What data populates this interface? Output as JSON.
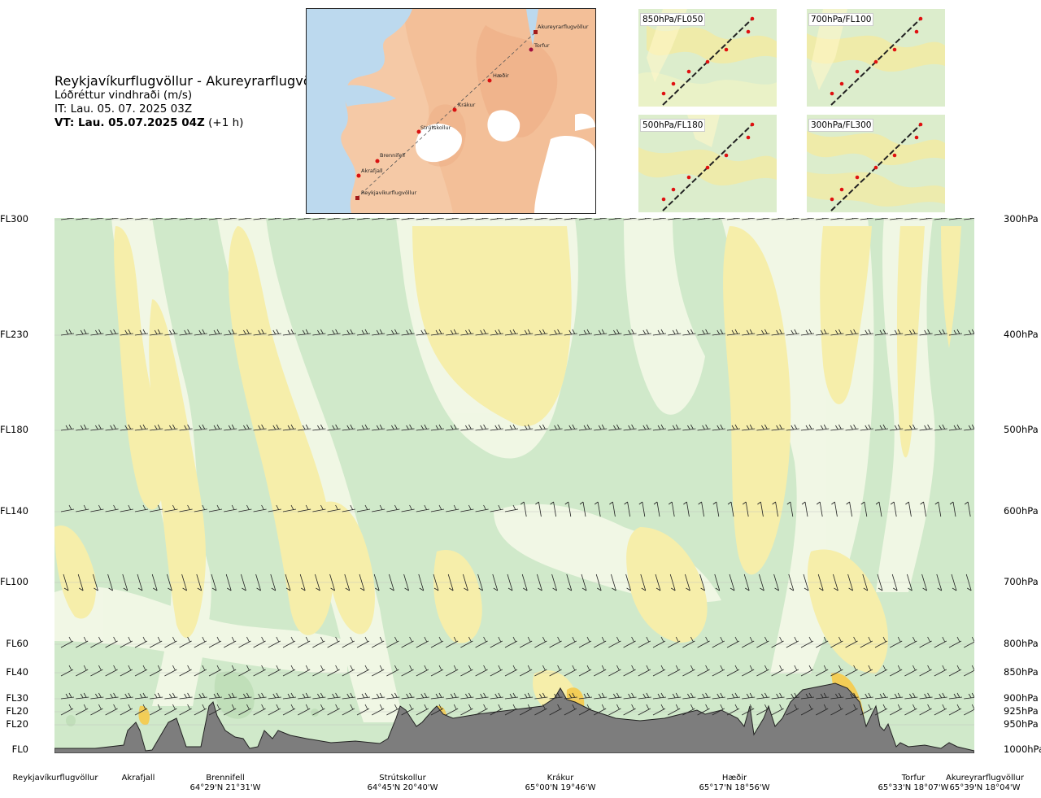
{
  "title": {
    "route": "Reykjavíkurflugvöllur - Akureyrarflugvöllur",
    "subtitle": "Lóðréttur vindhraði (m/s)",
    "it": "IT: Lau. 05. 07. 2025 03Z",
    "vt_bold": "VT: Lau. 05.07.2025 04Z",
    "vt_rest": " (+1 h)"
  },
  "map": {
    "points": [
      "Akureyrarflugvöllur",
      "Torfur",
      "Hæðir",
      "Krákur",
      "Strútskollur",
      "Brennifell",
      "Akrafjall",
      "Reykjavíkurflugvöllur"
    ]
  },
  "mini_maps": [
    {
      "label": "850hPa/FL050"
    },
    {
      "label": "700hPa/FL100"
    },
    {
      "label": "500hPa/FL180"
    },
    {
      "label": "300hPa/FL300"
    }
  ],
  "levels": [
    {
      "fl": "FL300",
      "hpa": "300hPa"
    },
    {
      "fl": "FL230",
      "hpa": "400hPa"
    },
    {
      "fl": "FL180",
      "hpa": "500hPa"
    },
    {
      "fl": "FL140",
      "hpa": "600hPa"
    },
    {
      "fl": "FL100",
      "hpa": "700hPa"
    },
    {
      "fl": "FL60",
      "hpa": "800hPa"
    },
    {
      "fl": "FL40",
      "hpa": "850hPa"
    },
    {
      "fl": "FL30",
      "hpa": "900hPa"
    },
    {
      "fl": "FL20",
      "hpa": "925hPa"
    },
    {
      "fl": "FL20",
      "hpa": "950hPa"
    },
    {
      "fl": "FL0",
      "hpa": "1000hPa"
    }
  ],
  "waypoints": [
    {
      "name": "Reykjavíkurflugvöllur",
      "coord": ""
    },
    {
      "name": "Akrafjall",
      "coord": ""
    },
    {
      "name": "Brennifell",
      "coord": "64°29'N 21°31'W"
    },
    {
      "name": "Strútskollur",
      "coord": "64°45'N 20°40'W"
    },
    {
      "name": "Krákur",
      "coord": "65°00'N 19°46'W"
    },
    {
      "name": "Hæðir",
      "coord": "65°17'N 18°56'W"
    },
    {
      "name": "Torfur",
      "coord": "65°33'N 18°07'W"
    },
    {
      "name": "Akureyrarflugvöllur",
      "coord": "65°39'N 18°04'W"
    }
  ],
  "colors": {
    "green": "#cfe8c9",
    "light_green": "#e6f3dc",
    "pale": "#fcfbdc",
    "yellow": "#f6eeaa",
    "orange": "#f3cd56",
    "terrain": "#7d7d7d",
    "land": "#f4c3a0",
    "sea": "#bcd9ee"
  }
}
